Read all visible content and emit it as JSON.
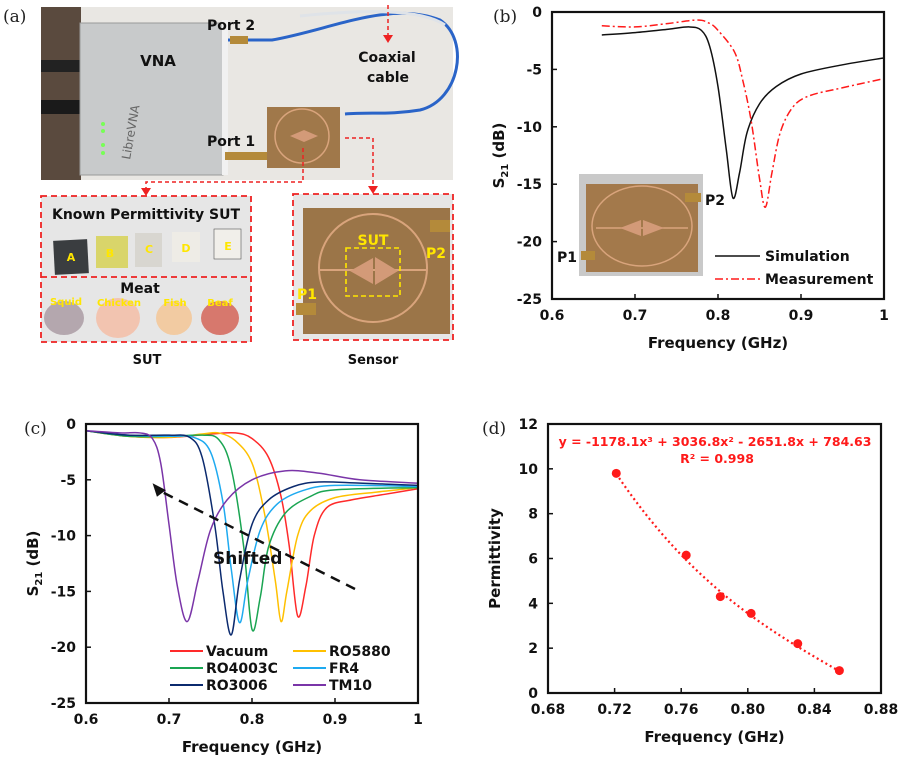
{
  "panels": {
    "a": {
      "label": "(a)",
      "vna": "VNA",
      "vna_brand": "LibreVNA",
      "port2": "Port 2",
      "port1": "Port 1",
      "coax_line1": "Coaxial",
      "coax_line2": "cable",
      "sut_box_title": "Known Permittivity SUT",
      "samples": [
        "A",
        "B",
        "C",
        "D",
        "E"
      ],
      "meat_title": "Meat",
      "meats": [
        "Squid",
        "Chicken",
        "Fish",
        "Beaf"
      ],
      "sensor_sut": "SUT",
      "sensor_p1": "P1",
      "sensor_p2": "P2",
      "caption_sut": "SUT",
      "caption_sensor": "Sensor"
    },
    "b": {
      "label": "(b)",
      "inset_p1": "P1",
      "inset_p2": "P2"
    },
    "c": {
      "label": "(c)"
    },
    "d": {
      "label": "(d)"
    }
  },
  "colors": {
    "simulation": "#111111",
    "measurement": "#ff1a1a",
    "Vacuum": "#ff2a2a",
    "RO5880": "#ffc000",
    "RO4003C": "#1aa552",
    "FR4": "#1eaaf0",
    "RO3006": "#0b2a6e",
    "TM10": "#7a35a8",
    "fit": "#ff1a1a"
  },
  "chart_data": [
    {
      "panel": "b",
      "type": "line",
      "xlabel": "Frequency (GHz)",
      "ylabel_main": "S",
      "ylabel_sub": "21",
      "ylabel_unit": " (dB)",
      "xlim": [
        0.6,
        1.0
      ],
      "ylim": [
        -25,
        0
      ],
      "xticks": [
        "0.6",
        "0.7",
        "0.8",
        "0.9",
        "1"
      ],
      "yticks": [
        "0",
        "-5",
        "-10",
        "-15",
        "-20",
        "-25"
      ],
      "legend": "bottom-right",
      "series": [
        {
          "name": "Simulation",
          "style": "solid",
          "x": [
            0.66,
            0.7,
            0.74,
            0.765,
            0.78,
            0.79,
            0.8,
            0.81,
            0.818,
            0.826,
            0.835,
            0.85,
            0.87,
            0.9,
            0.95,
            1.0
          ],
          "y": [
            -2.0,
            -1.8,
            -1.5,
            -1.3,
            -1.6,
            -3.0,
            -6.5,
            -12.0,
            -16.2,
            -14.0,
            -10.5,
            -8.0,
            -6.5,
            -5.4,
            -4.6,
            -4.0
          ]
        },
        {
          "name": "Measurement",
          "style": "dash-dot",
          "x": [
            0.66,
            0.7,
            0.74,
            0.775,
            0.79,
            0.8,
            0.82,
            0.83,
            0.84,
            0.85,
            0.857,
            0.865,
            0.875,
            0.89,
            0.91,
            0.95,
            1.0
          ],
          "y": [
            -1.2,
            -1.3,
            -1.0,
            -0.7,
            -1.0,
            -1.6,
            -3.5,
            -6.0,
            -9.5,
            -14.5,
            -17.0,
            -14.0,
            -10.5,
            -8.3,
            -7.3,
            -6.6,
            -5.8
          ]
        }
      ]
    },
    {
      "panel": "c",
      "type": "line",
      "xlabel": "Frequency (GHz)",
      "ylabel_main": "S",
      "ylabel_sub": "21",
      "ylabel_unit": " (dB)",
      "xlim": [
        0.6,
        1.0
      ],
      "ylim": [
        -25,
        0
      ],
      "xticks": [
        "0.6",
        "0.7",
        "0.8",
        "0.9",
        "1"
      ],
      "yticks": [
        "0",
        "-5",
        "-10",
        "-15",
        "-20",
        "-25"
      ],
      "annotation": "Shifted",
      "legend": "bottom",
      "series": [
        {
          "name": "Vacuum",
          "x": [
            0.6,
            0.65,
            0.7,
            0.75,
            0.78,
            0.8,
            0.82,
            0.835,
            0.845,
            0.855,
            0.865,
            0.875,
            0.89,
            0.92,
            0.96,
            1.0
          ],
          "y": [
            -0.6,
            -1.1,
            -1.2,
            -0.9,
            -0.8,
            -1.3,
            -3.0,
            -6.5,
            -11.0,
            -17.2,
            -14.5,
            -10.0,
            -7.5,
            -6.8,
            -6.3,
            -5.8
          ]
        },
        {
          "name": "RO5880",
          "x": [
            0.6,
            0.65,
            0.7,
            0.74,
            0.76,
            0.78,
            0.8,
            0.815,
            0.828,
            0.835,
            0.842,
            0.855,
            0.87,
            0.9,
            0.95,
            1.0
          ],
          "y": [
            -0.6,
            -1.1,
            -1.2,
            -0.9,
            -0.8,
            -1.5,
            -3.5,
            -8.0,
            -14.0,
            -17.7,
            -15.0,
            -10.0,
            -7.8,
            -6.6,
            -6.1,
            -5.7
          ]
        },
        {
          "name": "RO4003C",
          "x": [
            0.6,
            0.65,
            0.7,
            0.74,
            0.76,
            0.775,
            0.79,
            0.8,
            0.81,
            0.82,
            0.84,
            0.87,
            0.9,
            1.0
          ],
          "y": [
            -0.6,
            -1.1,
            -1.1,
            -1.0,
            -1.4,
            -4.0,
            -11.0,
            -18.4,
            -15.5,
            -11.0,
            -8.0,
            -6.5,
            -5.9,
            -5.7
          ]
        },
        {
          "name": "FR4",
          "x": [
            0.6,
            0.65,
            0.7,
            0.73,
            0.75,
            0.765,
            0.775,
            0.785,
            0.795,
            0.81,
            0.83,
            0.86,
            0.9,
            1.0
          ],
          "y": [
            -0.6,
            -1.0,
            -1.1,
            -1.2,
            -2.5,
            -7.0,
            -13.0,
            -17.8,
            -14.0,
            -9.5,
            -7.2,
            -6.0,
            -5.5,
            -5.6
          ]
        },
        {
          "name": "RO3006",
          "x": [
            0.6,
            0.65,
            0.7,
            0.725,
            0.74,
            0.755,
            0.765,
            0.775,
            0.785,
            0.8,
            0.82,
            0.85,
            0.88,
            0.93,
            1.0
          ],
          "y": [
            -0.6,
            -1.0,
            -1.0,
            -1.2,
            -3.0,
            -9.0,
            -15.0,
            -18.9,
            -14.0,
            -9.0,
            -6.8,
            -5.6,
            -5.2,
            -5.3,
            -5.5
          ]
        },
        {
          "name": "TM10",
          "x": [
            0.6,
            0.64,
            0.665,
            0.68,
            0.69,
            0.7,
            0.71,
            0.722,
            0.735,
            0.75,
            0.77,
            0.8,
            0.84,
            0.88,
            0.93,
            1.0
          ],
          "y": [
            -0.6,
            -0.8,
            -0.8,
            -1.3,
            -3.5,
            -9.0,
            -14.5,
            -17.7,
            -14.0,
            -9.5,
            -6.8,
            -5.0,
            -4.2,
            -4.4,
            -5.0,
            -5.3
          ]
        }
      ]
    },
    {
      "panel": "d",
      "type": "scatter",
      "xlabel": "Frequency (GHz)",
      "ylabel": "Permittivity",
      "xlim": [
        0.68,
        0.88
      ],
      "ylim": [
        0,
        12
      ],
      "xticks": [
        "0.68",
        "0.72",
        "0.76",
        "0.80",
        "0.84",
        "0.88"
      ],
      "yticks": [
        "12",
        "10",
        "8",
        "6",
        "4",
        "2",
        "0"
      ],
      "equation": "y = -1178.1x³ + 3036.8x² - 2651.8x + 784.63",
      "r_squared": "R² = 0.998",
      "fit_coefficients": [
        -1178.1,
        3036.8,
        -2651.8,
        784.63
      ],
      "points": {
        "x": [
          0.721,
          0.763,
          0.7835,
          0.802,
          0.83,
          0.855
        ],
        "y": [
          9.8,
          6.15,
          4.3,
          3.55,
          2.2,
          1.0
        ]
      }
    }
  ]
}
